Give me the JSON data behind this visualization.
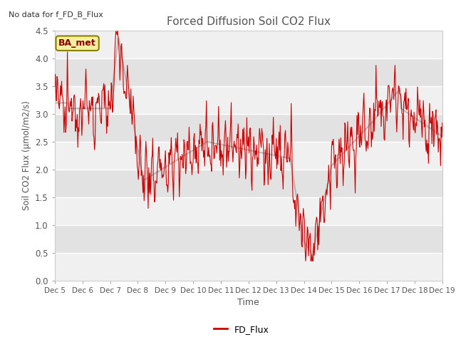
{
  "title": "Forced Diffusion Soil CO2 Flux",
  "no_data_text": "No data for f_FD_B_Flux",
  "xlabel": "Time",
  "ylabel": "Soil CO2 Flux (μmol/m2/s)",
  "ylim": [
    0.0,
    4.5
  ],
  "yticks": [
    0.0,
    0.5,
    1.0,
    1.5,
    2.0,
    2.5,
    3.0,
    3.5,
    4.0,
    4.5
  ],
  "legend_label": "FD_Flux",
  "line_color": "#CC0000",
  "line_width": 1.0,
  "background_color": "#ffffff",
  "axes_bg_color": "#f0f0f0",
  "grid_color": "#ffffff",
  "band_color_dark": "#e0e0e0",
  "band_color_light": "#f0f0f0",
  "ba_met_label": "BA_met",
  "ba_met_bg": "#f5f0a0",
  "ba_met_border": "#8b8000",
  "ba_met_text_color": "#8b0000",
  "title_color": "#555555",
  "no_data_color": "#333333",
  "xlabel_color": "#555555",
  "ylabel_color": "#555555",
  "tick_color": "#555555"
}
